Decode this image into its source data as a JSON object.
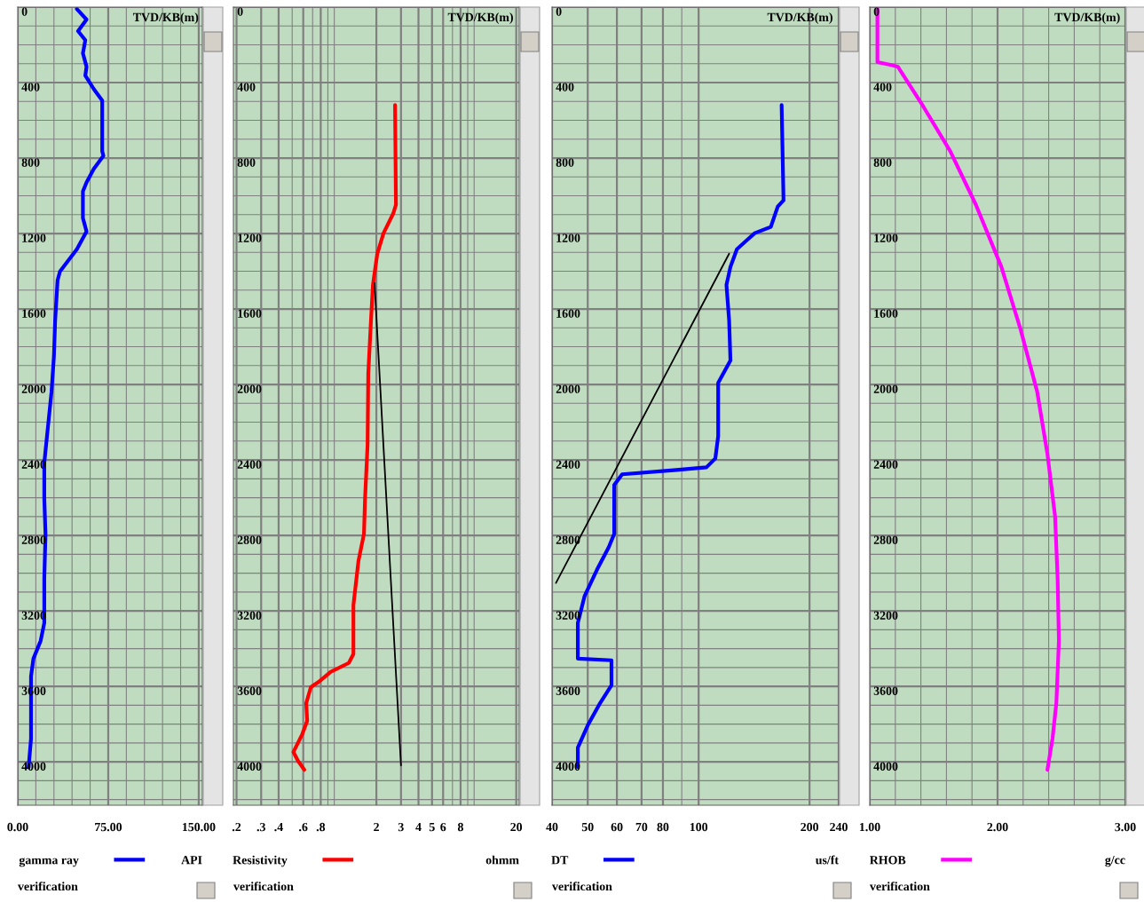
{
  "chart_data": [
    {
      "type": "line",
      "ylabel": "TVD/KB(m)",
      "xlabel": "API",
      "annotations": [
        "verification"
      ],
      "xlim": [
        0,
        153
      ],
      "xticks": [
        {
          "value": 0,
          "label": "0.00"
        },
        {
          "value": 75,
          "label": "75.00"
        },
        {
          "value": 150,
          "label": "150.00"
        }
      ],
      "ylim": [
        4230,
        0
      ],
      "yticks": [
        0,
        400,
        800,
        1200,
        1600,
        2000,
        2400,
        2800,
        3200,
        3600,
        4000
      ],
      "grid": true,
      "legend": "bottom",
      "series": [
        {
          "name": "gamma ray",
          "color": "#0000ff",
          "x": [
            49,
            57,
            50,
            56,
            54,
            57,
            56,
            63,
            70,
            70,
            71,
            63,
            57,
            54,
            54,
            57,
            49,
            35,
            33,
            31,
            30,
            28,
            25,
            22,
            22,
            23,
            22,
            22,
            19,
            13,
            11,
            11,
            11,
            9
          ],
          "values": [
            10,
            66,
            127,
            175,
            245,
            316,
            363,
            434,
            495,
            764,
            788,
            858,
            929,
            976,
            1118,
            1189,
            1283,
            1401,
            1448,
            1660,
            1849,
            2038,
            2226,
            2415,
            2604,
            2792,
            3028,
            3264,
            3358,
            3453,
            3547,
            3689,
            3877,
            4030
          ]
        }
      ]
    },
    {
      "type": "line",
      "ylabel": "TVD/KB(m)",
      "xlabel": "ohmm",
      "annotations": [
        "verification"
      ],
      "log": "x",
      "xlim": [
        0.19,
        21
      ],
      "xticks": [
        {
          "value": 0.2,
          "label": ".2"
        },
        {
          "value": 0.3,
          "label": ".3"
        },
        {
          "value": 0.4,
          "label": ".4"
        },
        {
          "value": 0.6,
          "label": ".6"
        },
        {
          "value": 0.8,
          "label": ".8"
        },
        2,
        3,
        4,
        5,
        6,
        8,
        20
      ],
      "ylim": [
        4230,
        0
      ],
      "yticks": [
        0,
        400,
        800,
        1200,
        1600,
        2000,
        2400,
        2800,
        3200,
        3600,
        4000
      ],
      "grid": true,
      "legend": "bottom",
      "series": [
        {
          "name": "Resistivity",
          "color": "#ff0000",
          "x": [
            2.72,
            2.76,
            2.64,
            2.25,
            2.03,
            1.89,
            1.83,
            1.75,
            1.73,
            1.66,
            1.63,
            1.49,
            1.37,
            1.37,
            1.27,
            0.94,
            0.79,
            0.68,
            0.63,
            0.64,
            0.59,
            0.51,
            0.55,
            0.61
          ],
          "values": [
            519,
            1047,
            1094,
            1198,
            1307,
            1472,
            1660,
            1943,
            2321,
            2604,
            2792,
            2934,
            3170,
            3429,
            3476,
            3524,
            3571,
            3604,
            3689,
            3783,
            3854,
            3948,
            3995,
            4042
          ]
        },
        {
          "color": "#000000",
          "x": [
            1.94,
            3.0
          ],
          "values": [
            1462,
            4019
          ]
        }
      ]
    },
    {
      "type": "line",
      "ylabel": "TVD/KB(m)",
      "xlabel": "us/ft",
      "annotations": [
        "verification"
      ],
      "log": "x",
      "xlim": [
        40,
        240
      ],
      "xticks": [
        40,
        50,
        60,
        70,
        80,
        100,
        200,
        240
      ],
      "ylim": [
        4230,
        0
      ],
      "yticks": [
        0,
        400,
        800,
        1200,
        1600,
        2000,
        2400,
        2800,
        3200,
        3600,
        4000
      ],
      "grid": true,
      "legend": "bottom",
      "series": [
        {
          "name": "DT",
          "color": "#0000ff",
          "x": [
            168,
            170,
            164,
            157,
            142,
            135,
            127,
            122,
            119,
            121,
            122,
            113,
            113,
            111,
            105,
            87,
            62,
            59,
            59,
            57,
            53,
            49,
            47,
            47,
            58,
            58,
            54,
            50,
            47,
            47
          ],
          "values": [
            519,
            1024,
            1057,
            1165,
            1198,
            1236,
            1283,
            1377,
            1472,
            1660,
            1873,
            1991,
            2274,
            2392,
            2439,
            2453,
            2476,
            2533,
            2792,
            2863,
            2981,
            3123,
            3264,
            3453,
            3462,
            3594,
            3689,
            3807,
            3925,
            4028
          ]
        },
        {
          "color": "#000000",
          "x": [
            121,
            41
          ],
          "values": [
            1307,
            3052
          ]
        }
      ]
    },
    {
      "type": "line",
      "ylabel": "TVD/KB(m)",
      "xlabel": "g/cc",
      "annotations": [
        "verification"
      ],
      "xlim": [
        1,
        3
      ],
      "xticks": [
        {
          "value": 1,
          "label": "1.00"
        },
        {
          "value": 2,
          "label": "2.00"
        },
        {
          "value": 3,
          "label": "3.00"
        }
      ],
      "ylim": [
        4230,
        0
      ],
      "yticks": [
        0,
        400,
        800,
        1200,
        1600,
        2000,
        2400,
        2800,
        3200,
        3600,
        4000
      ],
      "grid": true,
      "legend": "bottom",
      "series": [
        {
          "name": "RHOB",
          "color": "#ff00ff",
          "x": [
            1.06,
            1.06,
            1.17,
            1.22,
            1.42,
            1.63,
            1.83,
            2.03,
            2.18,
            2.31,
            2.39,
            2.45,
            2.47,
            2.48,
            2.46,
            2.43,
            2.39
          ],
          "values": [
            9,
            292,
            307,
            316,
            528,
            764,
            1047,
            1377,
            1708,
            2038,
            2368,
            2698,
            3028,
            3358,
            3689,
            3877,
            4042
          ]
        }
      ]
    }
  ]
}
